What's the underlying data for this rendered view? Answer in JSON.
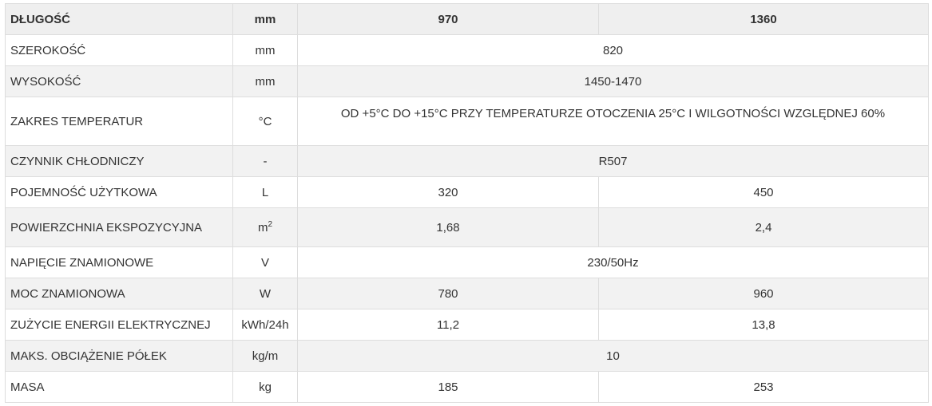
{
  "header": {
    "label": "DŁUGOŚĆ",
    "unit": "mm",
    "col1": "970",
    "col2": "1360"
  },
  "rows": [
    {
      "label": "SZEROKOŚĆ",
      "unit": "mm",
      "value": "820"
    },
    {
      "label": "WYSOKOŚĆ",
      "unit": "mm",
      "value": "1450-1470"
    },
    {
      "label": "ZAKRES TEMPERATUR",
      "unit": "°C",
      "value": "OD +5°C DO +15°C PRZY TEMPERATURZE OTOCZENIA 25°C I WILGOTNOŚCI WZGLĘDNEJ 60%"
    },
    {
      "label": "CZYNNIK CHŁODNICZY",
      "unit": "-",
      "value": "R507"
    },
    {
      "label": "POJEMNOŚĆ UŻYTKOWA",
      "unit": "L",
      "v1": "320",
      "v2": "450"
    },
    {
      "label": "POWIERZCHNIA EKSPOZYCYJNA",
      "unit": "m",
      "unit_sup": "2",
      "v1": "1,68",
      "v2": "2,4"
    },
    {
      "label": "NAPIĘCIE ZNAMIONOWE",
      "unit": "V",
      "value": "230/50Hz"
    },
    {
      "label": "MOC ZNAMIONOWA",
      "unit": "W",
      "v1": "780",
      "v2": "960"
    },
    {
      "label": "ZUŻYCIE ENERGII ELEKTRYCZNEJ",
      "unit": "kWh/24h",
      "v1": "11,2",
      "v2": "13,8"
    },
    {
      "label": "MAKS. OBCIĄŻENIE PÓŁEK",
      "unit": "kg/m",
      "value": "10"
    },
    {
      "label": "MASA",
      "unit": "kg",
      "v1": "185",
      "v2": "253"
    }
  ]
}
